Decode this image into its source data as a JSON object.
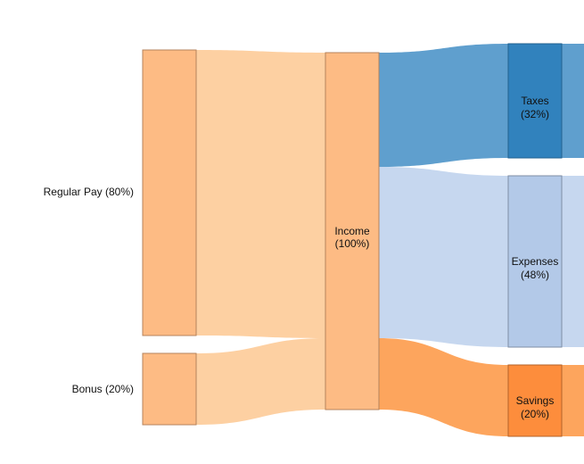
{
  "sankey": {
    "nodes": [
      {
        "id": "regular",
        "label": "Regular Pay (80%)",
        "value": 80,
        "color": "#fdbb84",
        "stroke": "#b5835c"
      },
      {
        "id": "bonus",
        "label": "Bonus (20%)",
        "value": 20,
        "color": "#fdbb84",
        "stroke": "#b5835c"
      },
      {
        "id": "income",
        "label": "Income",
        "label2": "(100%)",
        "value": 100,
        "color": "#fdbb84",
        "stroke": "#b5835c"
      },
      {
        "id": "taxes",
        "label": "Taxes",
        "label2": "(32%)",
        "value": 32,
        "color": "#3182bd",
        "stroke": "#23628f"
      },
      {
        "id": "expenses",
        "label": "Expenses",
        "label2": "(48%)",
        "value": 48,
        "color": "#b3c9e8",
        "stroke": "#7f8ea5"
      },
      {
        "id": "savings",
        "label": "Savings",
        "label2": "(20%)",
        "value": 20,
        "color": "#fd8d3c",
        "stroke": "#b3632a"
      }
    ],
    "links": [
      {
        "source": "regular",
        "target": "income",
        "value": 80,
        "color": "#fdd0a2"
      },
      {
        "source": "bonus",
        "target": "income",
        "value": 20,
        "color": "#fdd0a2"
      },
      {
        "source": "income",
        "target": "taxes",
        "value": 32,
        "color": "#5f9fce"
      },
      {
        "source": "income",
        "target": "expenses",
        "value": 48,
        "color": "#c6d7ef"
      },
      {
        "source": "income",
        "target": "savings",
        "value": 20,
        "color": "#fda55d"
      }
    ]
  }
}
